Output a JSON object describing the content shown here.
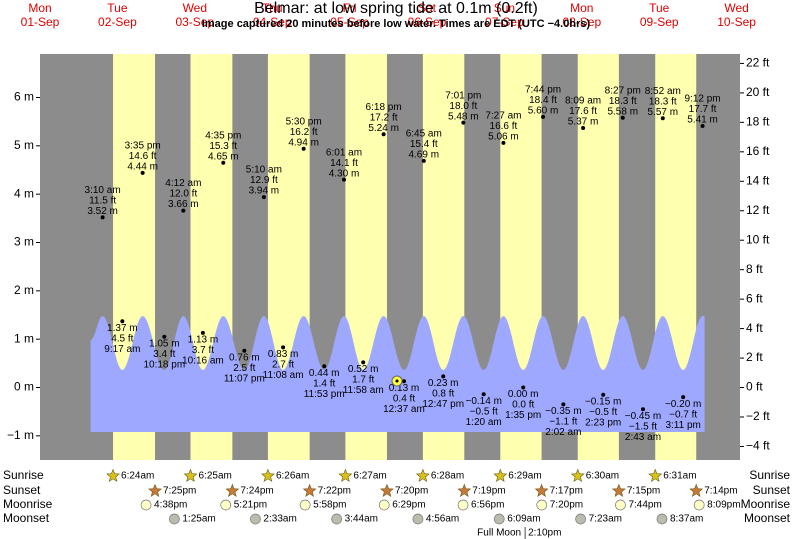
{
  "chart_data": {
    "type": "tide",
    "title": "Belmar: at low  spring tide at 0.1m (0.2ft)",
    "subtitle": "Image captured 20 minutes before low water. Times are EDT (UTC −4.0hrs)",
    "ylim": [
      -1.5,
      6.9
    ],
    "yticks": [
      {
        "value": -1,
        "label": "−1 m"
      },
      {
        "value": 0,
        "label": "0 m"
      },
      {
        "value": 1,
        "label": "1 m"
      },
      {
        "value": 2,
        "label": "2 m"
      },
      {
        "value": 3,
        "label": "3 m"
      },
      {
        "value": 4,
        "label": "4 m"
      },
      {
        "value": 5,
        "label": "5 m"
      },
      {
        "value": 6,
        "label": "6 m"
      }
    ],
    "y2lim": [
      -4.92,
      22.64
    ],
    "y2ticks": [
      {
        "value": -4,
        "label": "−4 ft"
      },
      {
        "value": -2,
        "label": "−2 ft"
      },
      {
        "value": 0,
        "label": "0 ft"
      },
      {
        "value": 2,
        "label": "2 ft"
      },
      {
        "value": 4,
        "label": "4 ft"
      },
      {
        "value": 6,
        "label": "6 ft"
      },
      {
        "value": 8,
        "label": "8 ft"
      },
      {
        "value": 10,
        "label": "10 ft"
      },
      {
        "value": 12,
        "label": "12 ft"
      },
      {
        "value": 14,
        "label": "14 ft"
      },
      {
        "value": 16,
        "label": "16 ft"
      },
      {
        "value": 18,
        "label": "18 ft"
      },
      {
        "value": 20,
        "label": "20 ft"
      },
      {
        "value": 22,
        "label": "22 ft"
      }
    ],
    "rows": {
      "sunrise": "Sunrise",
      "sunset": "Sunset",
      "moonrise": "Moonrise",
      "moonset": "Moonset"
    },
    "colors": {
      "night": "#8c8c8c",
      "day": "#ffffb0",
      "water": "#9ea8ff",
      "sunrise": "#d8c21a",
      "sunset": "#c8783a",
      "moonrise": "#ffffc8",
      "moonset": "#bcbcae"
    },
    "days": [
      {
        "weekday": "Mon",
        "date": "01-Sep"
      },
      {
        "weekday": "Tue",
        "date": "02-Sep",
        "sunrise": "6:24am",
        "sunset": "7:25pm",
        "moonrise": "4:38pm",
        "tides": [
          {
            "time": "3:10 am",
            "height_m": {
              "value": 3.52,
              "label": "3.52 m"
            },
            "height_ft": {
              "value": 11.5,
              "label": "11.5 ft"
            }
          },
          {
            "time": "9:17 am",
            "height_m": {
              "value": 1.37,
              "label": "1.37 m"
            },
            "height_ft": {
              "value": 4.5,
              "label": "4.5 ft"
            }
          },
          {
            "time": "3:35 pm",
            "height_m": {
              "value": 4.44,
              "label": "4.44 m"
            },
            "height_ft": {
              "value": 14.6,
              "label": "14.6 ft"
            }
          },
          {
            "time": "10:18 pm",
            "height_m": {
              "value": 1.05,
              "label": "1.05 m"
            },
            "height_ft": {
              "value": 3.4,
              "label": "3.4 ft"
            }
          }
        ]
      },
      {
        "weekday": "Wed",
        "date": "03-Sep",
        "sunrise": "6:25am",
        "sunset": "7:24pm",
        "moonrise": "5:21pm",
        "moonset": "1:25am",
        "tides": [
          {
            "time": "4:12 am",
            "height_m": {
              "value": 3.66,
              "label": "3.66 m"
            },
            "height_ft": {
              "value": 12.0,
              "label": "12.0 ft"
            }
          },
          {
            "time": "10:16 am",
            "height_m": {
              "value": 1.13,
              "label": "1.13 m"
            },
            "height_ft": {
              "value": 3.7,
              "label": "3.7 ft"
            }
          },
          {
            "time": "4:35 pm",
            "height_m": {
              "value": 4.65,
              "label": "4.65 m"
            },
            "height_ft": {
              "value": 15.3,
              "label": "15.3 ft"
            }
          },
          {
            "time": "11:07 pm",
            "height_m": {
              "value": 0.76,
              "label": "0.76 m"
            },
            "height_ft": {
              "value": 2.5,
              "label": "2.5 ft"
            }
          }
        ]
      },
      {
        "weekday": "Thu",
        "date": "04-Sep",
        "sunrise": "6:26am",
        "sunset": "7:22pm",
        "moonrise": "5:58pm",
        "moonset": "2:33am",
        "tides": [
          {
            "time": "5:10 am",
            "height_m": {
              "value": 3.94,
              "label": "3.94 m"
            },
            "height_ft": {
              "value": 12.9,
              "label": "12.9 ft"
            }
          },
          {
            "time": "11:08 am",
            "height_m": {
              "value": 0.83,
              "label": "0.83 m"
            },
            "height_ft": {
              "value": 2.7,
              "label": "2.7 ft"
            }
          },
          {
            "time": "5:30 pm",
            "height_m": {
              "value": 4.94,
              "label": "4.94 m"
            },
            "height_ft": {
              "value": 16.2,
              "label": "16.2 ft"
            }
          },
          {
            "time": "11:53 pm",
            "height_m": {
              "value": 0.44,
              "label": "0.44 m"
            },
            "height_ft": {
              "value": 1.4,
              "label": "1.4 ft"
            }
          }
        ]
      },
      {
        "weekday": "Fri",
        "date": "05-Sep",
        "sunrise": "6:27am",
        "sunset": "7:20pm",
        "moonrise": "6:29pm",
        "moonset": "3:44am",
        "tides": [
          {
            "time": "6:01 am",
            "height_m": {
              "value": 4.3,
              "label": "4.30 m"
            },
            "height_ft": {
              "value": 14.1,
              "label": "14.1 ft"
            }
          },
          {
            "time": "11:58 am",
            "height_m": {
              "value": 0.52,
              "label": "0.52 m"
            },
            "height_ft": {
              "value": 1.7,
              "label": "1.7 ft"
            }
          },
          {
            "time": "6:18 pm",
            "height_m": {
              "value": 5.24,
              "label": "5.24 m"
            },
            "height_ft": {
              "value": 17.2,
              "label": "17.2 ft"
            }
          }
        ]
      },
      {
        "weekday": "Sat",
        "date": "06-Sep",
        "sunrise": "6:28am",
        "sunset": "7:19pm",
        "moonrise": "6:56pm",
        "moonset": "4:56am",
        "tides": [
          {
            "time": "12:37 am",
            "height_m": {
              "value": 0.13,
              "label": "0.13 m"
            },
            "height_ft": {
              "value": 0.4,
              "label": "0.4 ft"
            }
          },
          {
            "time": "6:45 am",
            "height_m": {
              "value": 4.69,
              "label": "4.69 m"
            },
            "height_ft": {
              "value": 15.4,
              "label": "15.4 ft"
            }
          },
          {
            "time": "12:47 pm",
            "height_m": {
              "value": 0.23,
              "label": "0.23 m"
            },
            "height_ft": {
              "value": 0.8,
              "label": "0.8 ft"
            }
          },
          {
            "time": "7:01 pm",
            "height_m": {
              "value": 5.48,
              "label": "5.48 m"
            },
            "height_ft": {
              "value": 18.0,
              "label": "18.0 ft"
            }
          }
        ]
      },
      {
        "weekday": "Sun",
        "date": "07-Sep",
        "sunrise": "6:29am",
        "sunset": "7:17pm",
        "moonrise": "7:20pm",
        "moonset": "6:09am",
        "phase": {
          "label": "Full Moon",
          "time": "2:10pm"
        },
        "tides": [
          {
            "time": "1:20 am",
            "height_m": {
              "value": -0.14,
              "label": "−0.14 m"
            },
            "height_ft": {
              "value": -0.5,
              "label": "−0.5 ft"
            }
          },
          {
            "time": "7:27 am",
            "height_m": {
              "value": 5.06,
              "label": "5.06 m"
            },
            "height_ft": {
              "value": 16.6,
              "label": "16.6 ft"
            }
          },
          {
            "time": "1:35 pm",
            "height_m": {
              "value": 0.0,
              "label": "0.00 m"
            },
            "height_ft": {
              "value": 0.0,
              "label": "0.0 ft"
            }
          },
          {
            "time": "7:44 pm",
            "height_m": {
              "value": 5.6,
              "label": "5.60 m"
            },
            "height_ft": {
              "value": 18.4,
              "label": "18.4 ft"
            }
          }
        ]
      },
      {
        "weekday": "Mon",
        "date": "08-Sep",
        "sunrise": "6:30am",
        "sunset": "7:15pm",
        "moonrise": "7:44pm",
        "moonset": "7:23am",
        "tides": [
          {
            "time": "2:02 am",
            "height_m": {
              "value": -0.35,
              "label": "−0.35 m"
            },
            "height_ft": {
              "value": -1.1,
              "label": "−1.1 ft"
            }
          },
          {
            "time": "8:09 am",
            "height_m": {
              "value": 5.37,
              "label": "5.37 m"
            },
            "height_ft": {
              "value": 17.6,
              "label": "17.6 ft"
            }
          },
          {
            "time": "2:23 pm",
            "height_m": {
              "value": -0.15,
              "label": "−0.15 m"
            },
            "height_ft": {
              "value": -0.5,
              "label": "−0.5 ft"
            }
          },
          {
            "time": "8:27 pm",
            "height_m": {
              "value": 5.58,
              "label": "5.58 m"
            },
            "height_ft": {
              "value": 18.3,
              "label": "18.3 ft"
            }
          }
        ]
      },
      {
        "weekday": "Tue",
        "date": "09-Sep",
        "sunrise": "6:31am",
        "sunset": "7:14pm",
        "moonrise": "8:09pm",
        "moonset": "8:37am",
        "tides": [
          {
            "time": "2:43 am",
            "height_m": {
              "value": -0.45,
              "label": "−0.45 m"
            },
            "height_ft": {
              "value": -1.5,
              "label": "−1.5 ft"
            }
          },
          {
            "time": "8:52 am",
            "height_m": {
              "value": 5.57,
              "label": "5.57 m"
            },
            "height_ft": {
              "value": 18.3,
              "label": "18.3 ft"
            }
          },
          {
            "time": "3:11 pm",
            "height_m": {
              "value": -0.2,
              "label": "−0.20 m"
            },
            "height_ft": {
              "value": -0.7,
              "label": "−0.7 ft"
            }
          },
          {
            "time": "9:12 pm",
            "height_m": {
              "value": 5.41,
              "label": "5.41 m"
            },
            "height_ft": {
              "value": 17.7,
              "label": "17.7 ft"
            }
          }
        ]
      },
      {
        "weekday": "Wed",
        "date": "10-Sep"
      }
    ]
  }
}
